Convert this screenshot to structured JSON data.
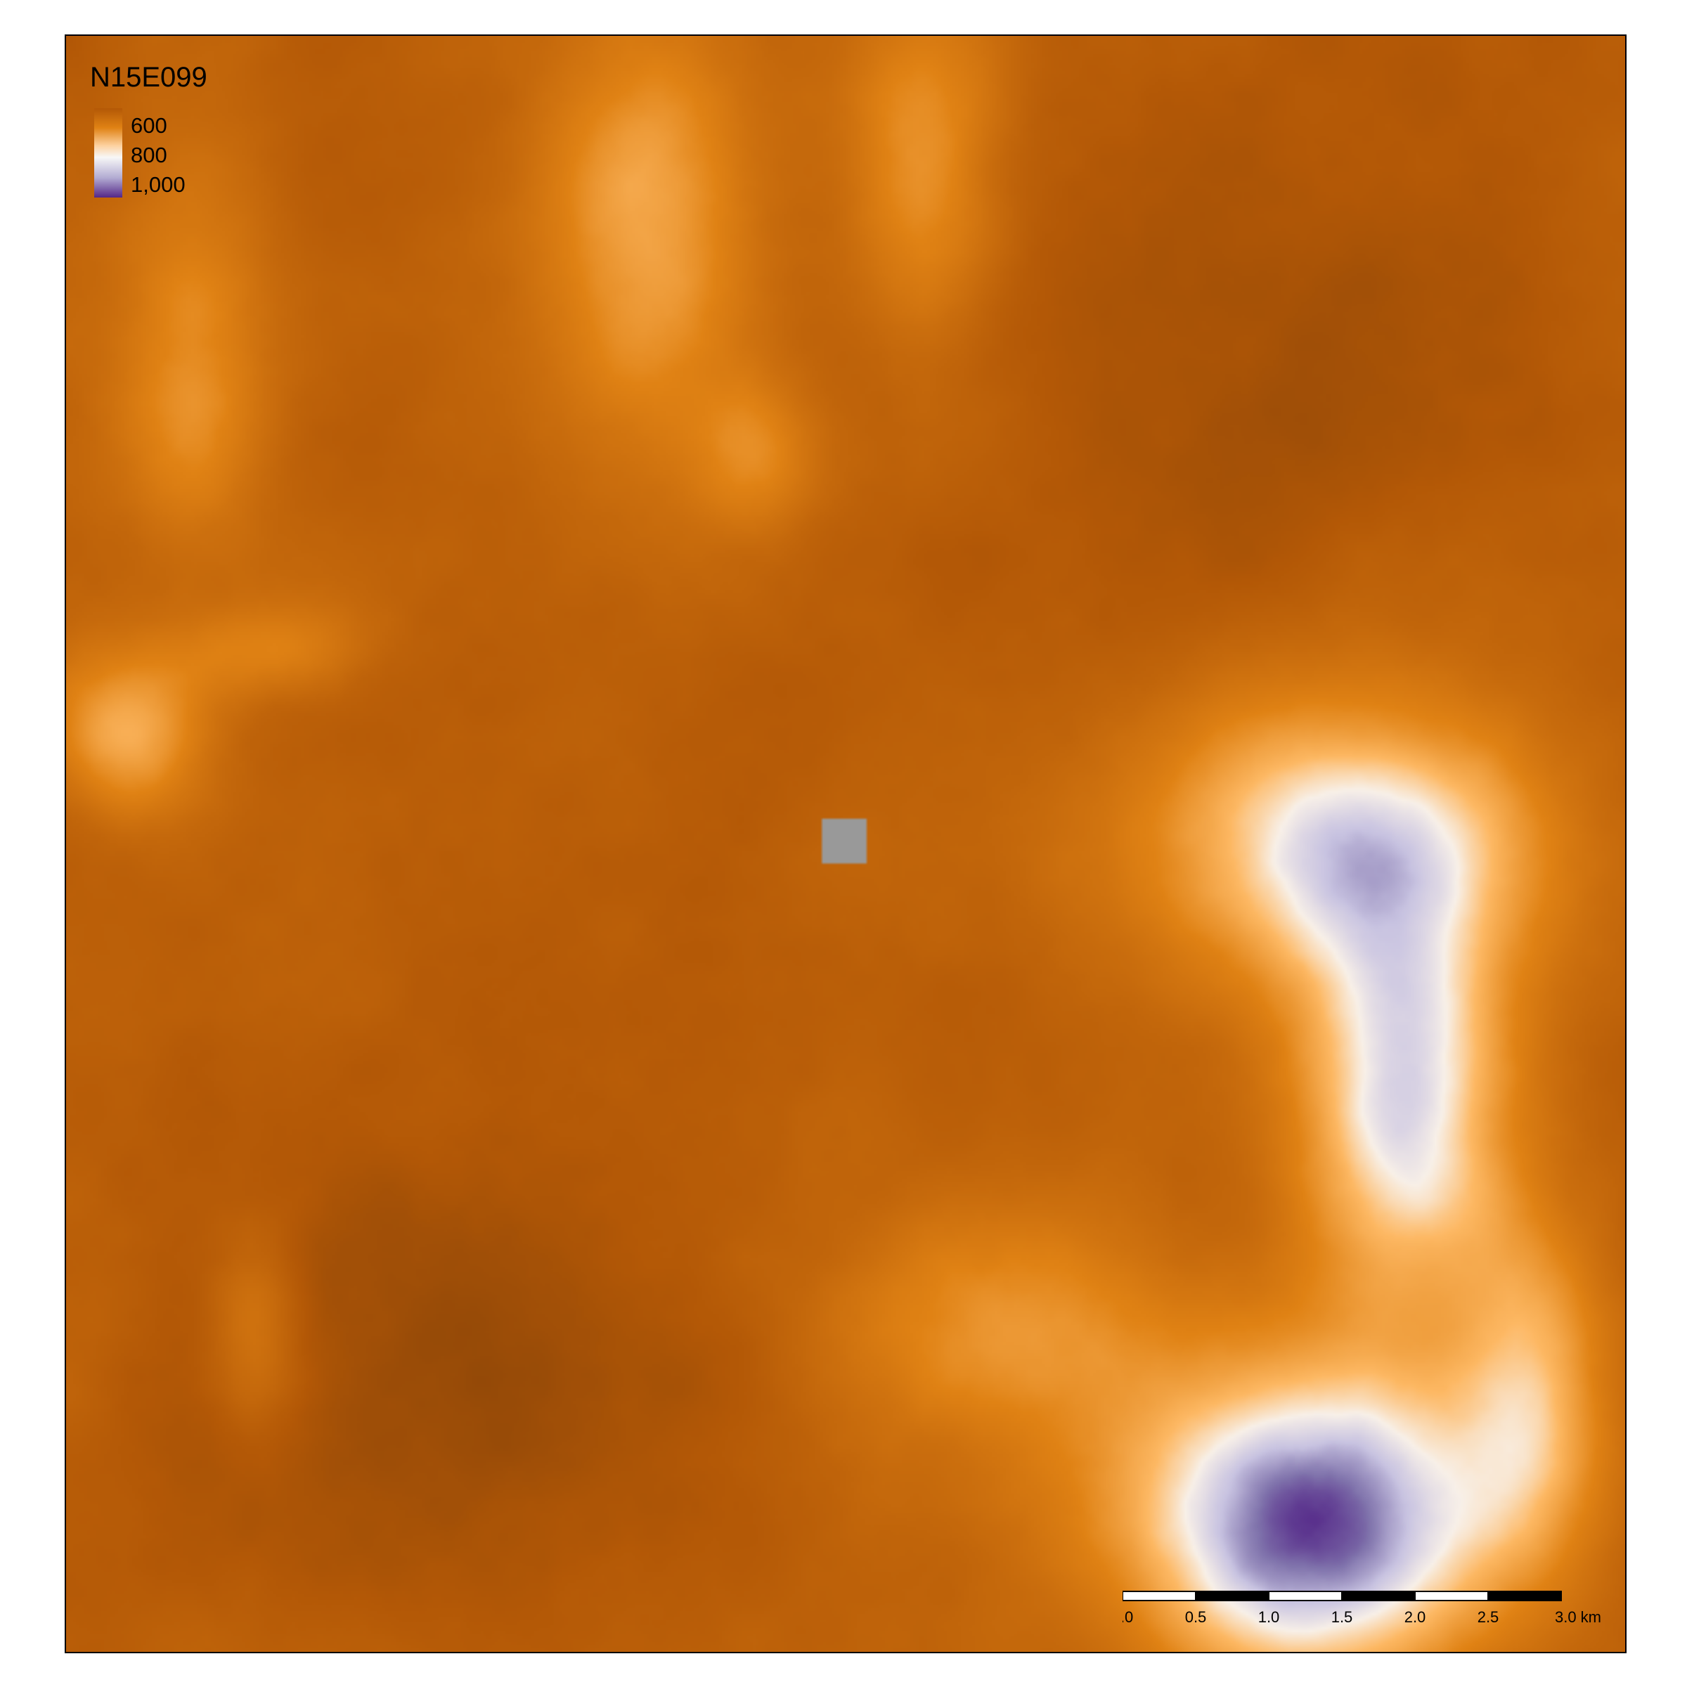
{
  "map": {
    "tile_id": "N15E099",
    "nodata_color": "#999999"
  },
  "legend": {
    "title": "N15E099",
    "labels": [
      "600",
      "800",
      "1,000"
    ],
    "colors": {
      "low": "#b35806",
      "mid_low": "#e08214",
      "mid": "#f7f7f7",
      "mid_high": "#b2abd2",
      "high": "#542788"
    }
  },
  "scalebar": {
    "ticks": [
      "0.0",
      "0.5",
      "1.0",
      "1.5",
      "2.0",
      "2.5",
      "3.0 km"
    ]
  }
}
